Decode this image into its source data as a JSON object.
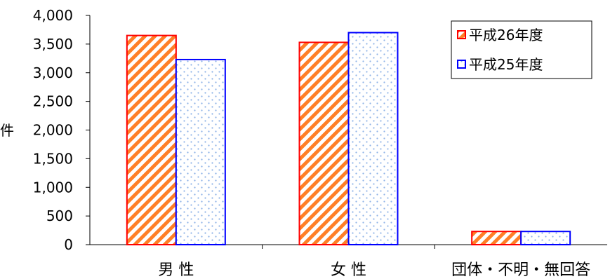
{
  "chart_data": {
    "type": "bar",
    "title": "",
    "ylabel": "件",
    "xlabel": "",
    "categories": [
      "男 性",
      "女 性",
      "団体・不明・無回答"
    ],
    "series": [
      {
        "name": "平成26年度",
        "values": [
          3650,
          3530,
          230
        ],
        "color": "#ff0000",
        "fill": "#ff7f27",
        "pattern": "diagonal-stripes"
      },
      {
        "name": "平成25年度",
        "values": [
          3230,
          3700,
          230
        ],
        "color": "#0000ff",
        "fill": "#c6d9f1",
        "pattern": "dotted"
      }
    ],
    "ylim": [
      0,
      4000
    ],
    "yticks": [
      "0",
      "500",
      "1,000",
      "1,500",
      "2,000",
      "2,500",
      "3,000",
      "3,500",
      "4,000"
    ],
    "ytick_values": [
      0,
      500,
      1000,
      1500,
      2000,
      2500,
      3000,
      3500,
      4000
    ],
    "grid": false,
    "legend_position": "top-right"
  }
}
